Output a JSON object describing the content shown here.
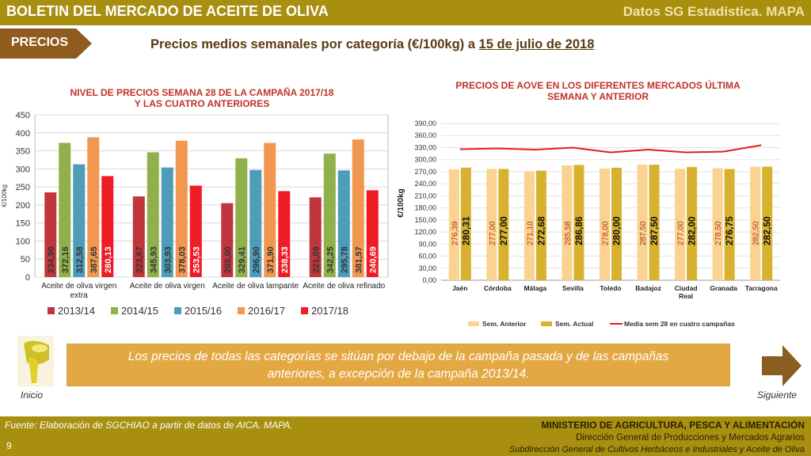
{
  "header": {
    "title": "BOLETIN DEL MERCADO DE ACEITE DE OLIVA",
    "source_label": "Datos SG Estadística. MAPA"
  },
  "section": {
    "tag": "PRECIOS",
    "subtitle_prefix": "Precios medios semanales por categoría (€/100kg) a",
    "subtitle_date": "15 de julio de 2018"
  },
  "chart_data": [
    {
      "type": "bar",
      "title_line1": "NIVEL DE PRECIOS SEMANA 28 DE LA CAMPAÑA 2017/18",
      "title_line2": "Y LAS CUATRO ANTERIORES",
      "ylabel": "€/100kg",
      "ylim": [
        0,
        450
      ],
      "yticks": [
        "0",
        "50",
        "100",
        "150",
        "200",
        "250",
        "300",
        "350",
        "400",
        "450"
      ],
      "categories": [
        [
          "Aceite de oliva virgen",
          "extra"
        ],
        [
          "Aceite de oliva virgen"
        ],
        [
          "Aceite de oliva lampante"
        ],
        [
          "Aceite de oliva refinado"
        ]
      ],
      "series": [
        {
          "name": "2013/14",
          "color": "#c0363c",
          "values": [
            234.9,
            223.67,
            205.0,
            221.09
          ],
          "labels": [
            "234,90",
            "223,67",
            "205,00",
            "221,09"
          ]
        },
        {
          "name": "2014/15",
          "color": "#8fb04a",
          "values": [
            372.16,
            345.93,
            329.41,
            342.25
          ],
          "labels": [
            "372,16",
            "345,93",
            "329,41",
            "342,25"
          ]
        },
        {
          "name": "2015/16",
          "color": "#4d9cb8",
          "values": [
            312.58,
            303.93,
            296.9,
            295.78
          ],
          "labels": [
            "312,58",
            "303,93",
            "296,90",
            "295,78"
          ]
        },
        {
          "name": "2016/17",
          "color": "#f2974f",
          "values": [
            387.65,
            378.03,
            371.9,
            381.57
          ],
          "labels": [
            "387,65",
            "378,03",
            "371,90",
            "381,57"
          ]
        },
        {
          "name": "2017/18",
          "color": "#ee1c25",
          "values": [
            280.13,
            253.53,
            238.33,
            240.69
          ],
          "labels": [
            "280,13",
            "253,53",
            "238,33",
            "240,69"
          ]
        }
      ]
    },
    {
      "type": "bar",
      "title_line1": "PRECIOS DE AOVE EN LOS DIFERENTES MERCADOS ÚLTIMA",
      "title_line2": "SEMANA Y ANTERIOR",
      "ylabel": "€/100kg",
      "ylim": [
        0,
        390
      ],
      "yticks": [
        "0,00",
        "30,00",
        "60,00",
        "90,00",
        "120,00",
        "150,00",
        "180,00",
        "210,00",
        "240,00",
        "270,00",
        "300,00",
        "330,00",
        "360,00",
        "390,00"
      ],
      "categories": [
        [
          "Jaén"
        ],
        [
          "Córdoba"
        ],
        [
          "Málaga"
        ],
        [
          "Sevilla"
        ],
        [
          "Toledo"
        ],
        [
          "Badajoz"
        ],
        [
          "Ciudad",
          "Real"
        ],
        [
          "Granada"
        ],
        [
          "Tarragona"
        ]
      ],
      "series": [
        {
          "name": "Sem. Anterior",
          "color": "#f9d38f",
          "values": [
            276.39,
            277.0,
            271.1,
            285.58,
            278.0,
            287.5,
            277.0,
            278.5,
            282.5
          ],
          "labels": [
            "276,39",
            "277,00",
            "271,10",
            "285,58",
            "278,00",
            "287,50",
            "277,00",
            "278,50",
            "282,50"
          ]
        },
        {
          "name": "Sem. Actual",
          "color": "#d8b22f",
          "values": [
            280.31,
            277.0,
            272.68,
            286.86,
            280.0,
            287.5,
            282.0,
            276.75,
            282.5
          ],
          "labels": [
            "280,31",
            "277,00",
            "272,68",
            "286,86",
            "280,00",
            "287,50",
            "282,00",
            "276,75",
            "282,50"
          ]
        }
      ],
      "line": {
        "name": "Media sem 28 en cuatro campañas",
        "color": "#e02020",
        "values": [
          326,
          328,
          325,
          330,
          318,
          325,
          318,
          320,
          336
        ]
      }
    }
  ],
  "note": {
    "line1": "Los precios de todas las categorías se sitúan por debajo de la campaña pasada y de las campañas",
    "line2": "anteriores, a excepción de la campaña 2013/14."
  },
  "nav": {
    "prev_label": "Inicio",
    "next_label": "Siguiente"
  },
  "footer": {
    "source": "Fuente: Elaboración de SGCHIAO a partir de datos de AICA. MAPA.",
    "page": "9",
    "ministry": "MINISTERIO DE AGRICULTURA, PESCA Y ALIMENTACIÓN",
    "directorate": "Dirección General de Producciones y Mercados Agrarios",
    "subdirectorate": "Subdirección General de Cultivos Herbáceos e Industriales y Aceite de Oliva"
  },
  "colors": {
    "brand": "#a88f10",
    "tag": "#8f5b1e",
    "note_bg": "#e3a843",
    "arrow": "#8a5d20"
  }
}
